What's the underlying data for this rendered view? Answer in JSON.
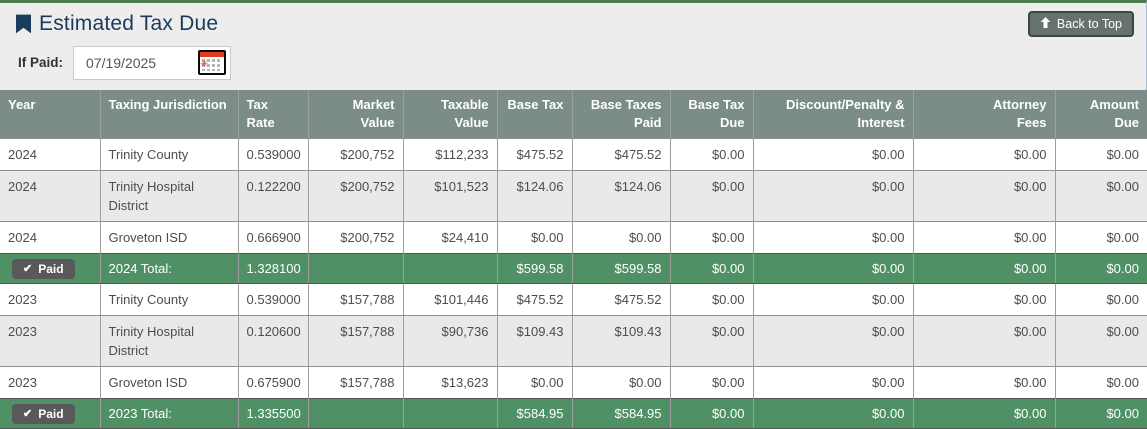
{
  "header": {
    "title": "Estimated Tax Due",
    "back_to_top_label": "Back to Top"
  },
  "if_paid": {
    "label": "If Paid:",
    "value": "07/19/2025"
  },
  "table": {
    "columns": [
      {
        "label": "Year",
        "align": "left"
      },
      {
        "label": "Taxing Jurisdiction",
        "align": "left"
      },
      {
        "label": "Tax Rate",
        "align": "left"
      },
      {
        "label": "Market Value",
        "align": "right"
      },
      {
        "label": "Taxable Value",
        "align": "right"
      },
      {
        "label": "Base Tax",
        "align": "right"
      },
      {
        "label": "Base Taxes Paid",
        "align": "right"
      },
      {
        "label": "Base Tax Due",
        "align": "right"
      },
      {
        "label": "Discount/Penalty & Interest",
        "align": "right"
      },
      {
        "label": "Attorney Fees",
        "align": "right"
      },
      {
        "label": "Amount Due",
        "align": "right"
      }
    ],
    "rows": [
      {
        "type": "data",
        "cells": [
          "2024",
          "Trinity County",
          "0.539000",
          "$200,752",
          "$112,233",
          "$475.52",
          "$475.52",
          "$0.00",
          "$0.00",
          "$0.00",
          "$0.00"
        ]
      },
      {
        "type": "data",
        "cells": [
          "2024",
          "Trinity Hospital District",
          "0.122200",
          "$200,752",
          "$101,523",
          "$124.06",
          "$124.06",
          "$0.00",
          "$0.00",
          "$0.00",
          "$0.00"
        ]
      },
      {
        "type": "data",
        "cells": [
          "2024",
          "Groveton ISD",
          "0.666900",
          "$200,752",
          "$24,410",
          "$0.00",
          "$0.00",
          "$0.00",
          "$0.00",
          "$0.00",
          "$0.00"
        ]
      },
      {
        "type": "total",
        "badge": "Paid",
        "cells": [
          "",
          "2024 Total:",
          "1.328100",
          "",
          "",
          "$599.58",
          "$599.58",
          "$0.00",
          "$0.00",
          "$0.00",
          "$0.00"
        ]
      },
      {
        "type": "data",
        "cells": [
          "2023",
          "Trinity County",
          "0.539000",
          "$157,788",
          "$101,446",
          "$475.52",
          "$475.52",
          "$0.00",
          "$0.00",
          "$0.00",
          "$0.00"
        ]
      },
      {
        "type": "data",
        "cells": [
          "2023",
          "Trinity Hospital District",
          "0.120600",
          "$157,788",
          "$90,736",
          "$109.43",
          "$109.43",
          "$0.00",
          "$0.00",
          "$0.00",
          "$0.00"
        ]
      },
      {
        "type": "data",
        "cells": [
          "2023",
          "Groveton ISD",
          "0.675900",
          "$157,788",
          "$13,623",
          "$0.00",
          "$0.00",
          "$0.00",
          "$0.00",
          "$0.00",
          "$0.00"
        ]
      },
      {
        "type": "total",
        "badge": "Paid",
        "cells": [
          "",
          "2023 Total:",
          "1.335500",
          "",
          "",
          "$584.95",
          "$584.95",
          "$0.00",
          "$0.00",
          "$0.00",
          "$0.00"
        ]
      }
    ]
  },
  "colors": {
    "accent_green_total_row": "#4f9164",
    "top_border_green": "#4a7c4e",
    "table_header_gray": "#7c8c88",
    "title_navy": "#1b3a5c",
    "badge_gray": "#595959"
  }
}
